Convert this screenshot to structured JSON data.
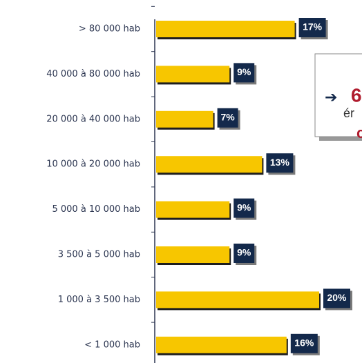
{
  "chart_data": {
    "type": "barh",
    "categories": [
      "> 80 000 hab",
      "40 000 à 80 000 hab",
      "20 000 à 40 000 hab",
      "10 000 à 20 000 hab",
      "5 000 à 10 000 hab",
      "3 500 à 5 000 hab",
      "1 000 à 3 500 hab",
      "< 1 000 hab"
    ],
    "values": [
      17,
      9,
      7,
      13,
      9,
      9,
      20,
      16
    ],
    "value_labels": [
      "17%",
      "9%",
      "7%",
      "13%",
      "9%",
      "9%",
      "20%",
      "16%"
    ],
    "color": "#f7c600",
    "label_color": "#13294b",
    "annotation": {
      "lines": [
        "6",
        "ér",
        "c"
      ]
    }
  }
}
